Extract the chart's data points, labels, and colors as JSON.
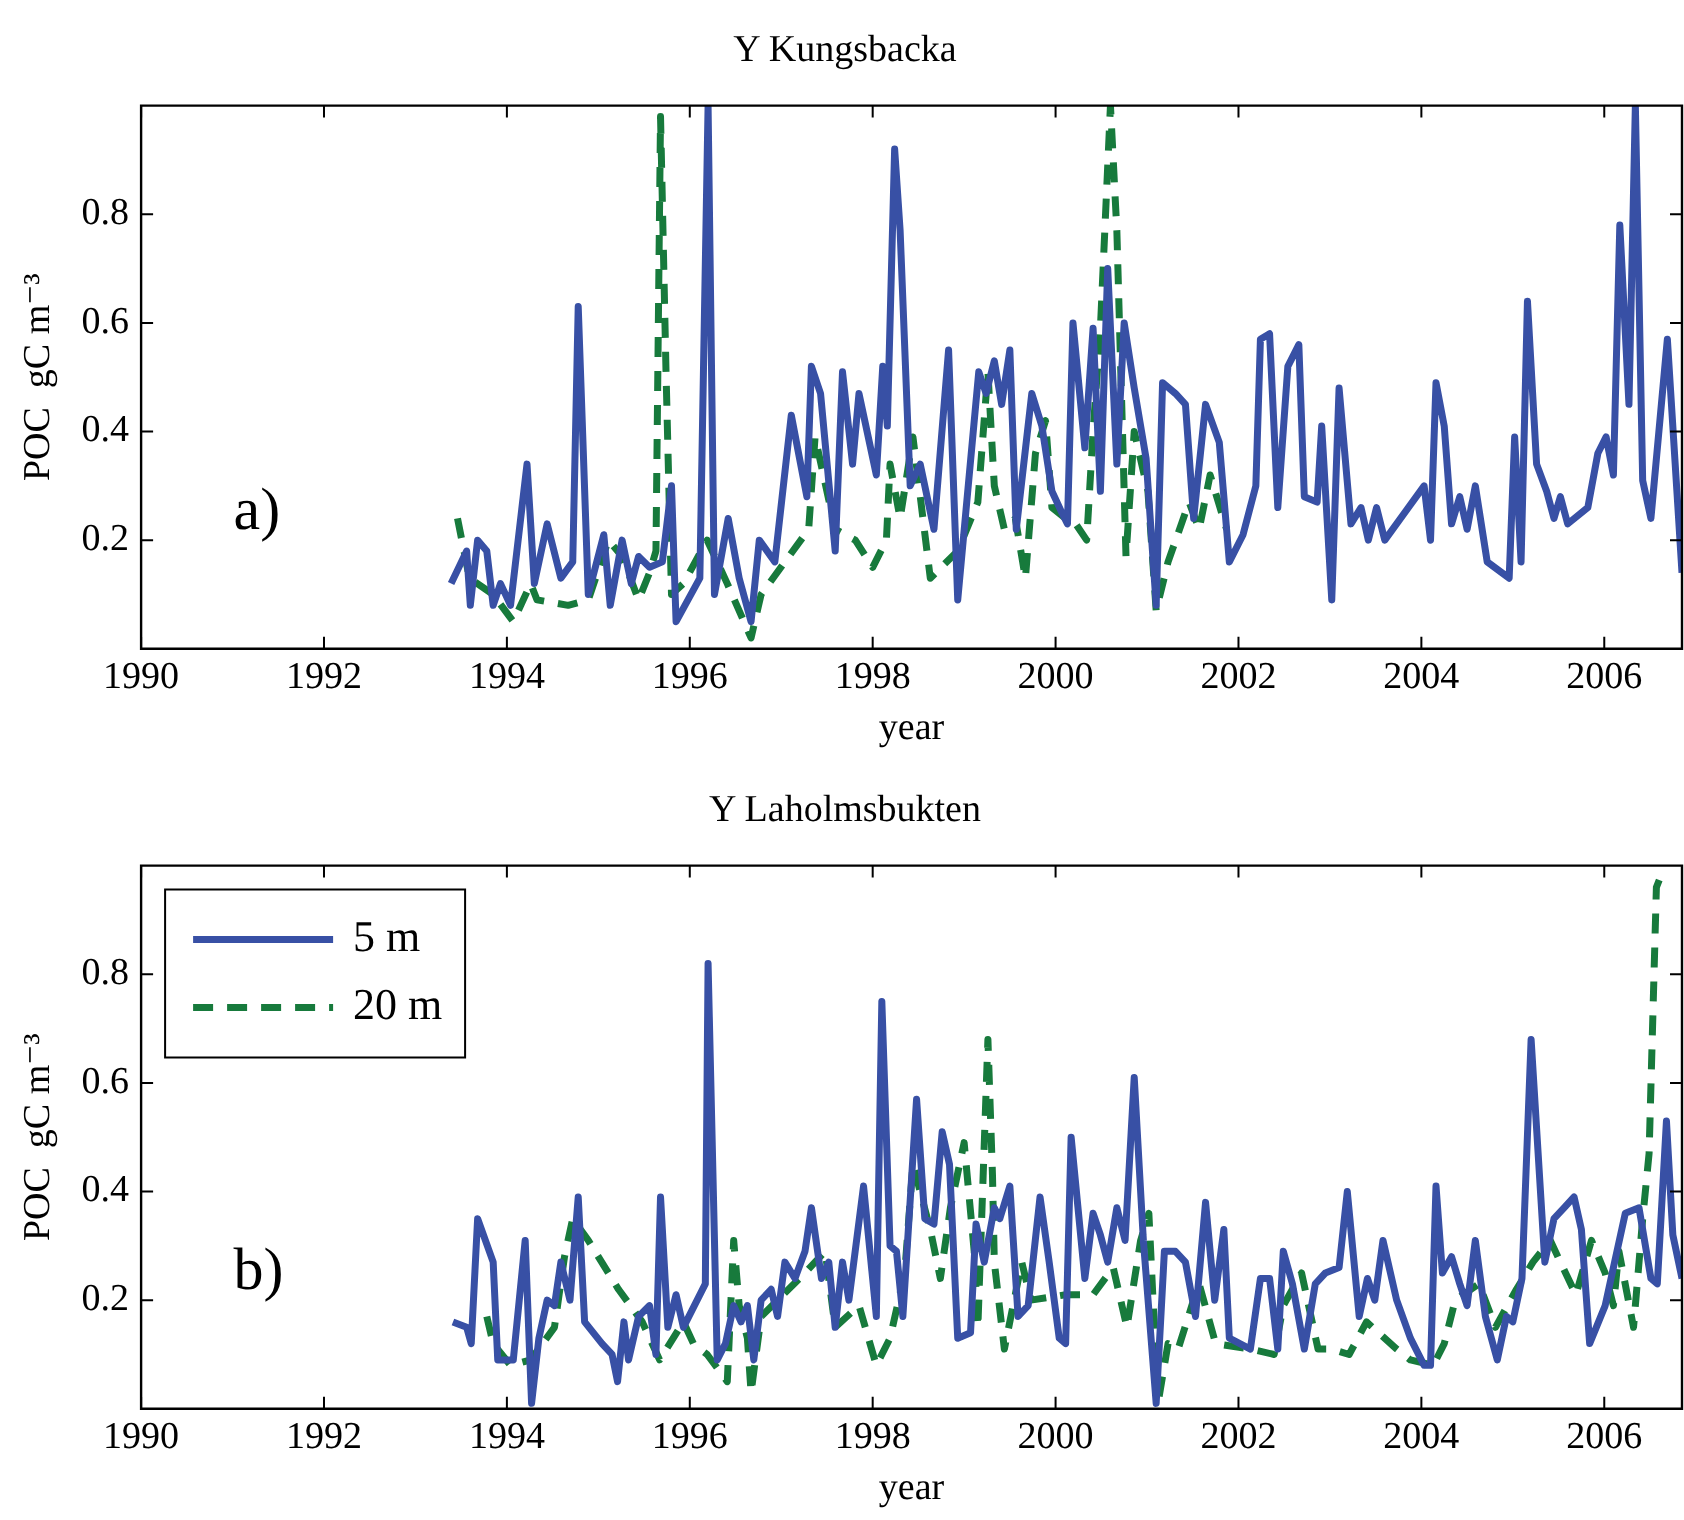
{
  "chart_data": [
    {
      "type": "line",
      "title": "Y Kungsbacka",
      "xlabel": "year",
      "ylabel": "POC  gC m⁻³",
      "annotations": [
        "a)"
      ],
      "xlim": [
        1990,
        2006.85
      ],
      "ylim": [
        0,
        1
      ],
      "xticks": [
        1990,
        1992,
        1994,
        1996,
        1998,
        2000,
        2002,
        2004,
        2006
      ],
      "yticks": [
        0.2,
        0.4,
        0.6,
        0.8
      ],
      "grid": false,
      "legend": false,
      "marker": "none",
      "series": [
        {
          "color": "#3850a5",
          "line_style": "solid",
          "x": [
            1993.39,
            1993.56,
            1993.6,
            1993.68,
            1993.78,
            1993.85,
            1993.93,
            1994.04,
            1994.22,
            1994.3,
            1994.44,
            1994.59,
            1994.72,
            1994.78,
            1994.89,
            1995.06,
            1995.13,
            1995.26,
            1995.36,
            1995.44,
            1995.56,
            1995.7,
            1995.8,
            1995.85,
            1996.11,
            1996.2,
            1996.27,
            1996.42,
            1996.54,
            1996.67,
            1996.76,
            1996.93,
            1997.11,
            1997.28,
            1997.33,
            1997.43,
            1997.59,
            1997.67,
            1997.78,
            1997.85,
            1998.04,
            1998.11,
            1998.16,
            1998.24,
            1998.3,
            1998.41,
            1998.52,
            1998.67,
            1998.83,
            1998.93,
            1999.16,
            1999.24,
            1999.33,
            1999.41,
            1999.5,
            1999.57,
            1999.74,
            1999.85,
            1999.96,
            2000.07,
            2000.13,
            2000.19,
            2000.32,
            2000.41,
            2000.49,
            2000.57,
            2000.67,
            2000.75,
            2000.86,
            2000.99,
            2001.1,
            2001.17,
            2001.31,
            2001.42,
            2001.51,
            2001.64,
            2001.79,
            2001.9,
            2002.05,
            2002.19,
            2002.24,
            2002.34,
            2002.43,
            2002.54,
            2002.66,
            2002.72,
            2002.86,
            2002.91,
            2003.02,
            2003.1,
            2003.23,
            2003.34,
            2003.42,
            2003.51,
            2003.6,
            2004.03,
            2004.1,
            2004.16,
            2004.25,
            2004.33,
            2004.42,
            2004.5,
            2004.59,
            2004.72,
            2004.96,
            2005.02,
            2005.09,
            2005.16,
            2005.26,
            2005.37,
            2005.45,
            2005.52,
            2005.6,
            2005.82,
            2005.93,
            2006.02,
            2006.1,
            2006.17,
            2006.27,
            2006.34,
            2006.42,
            2006.51,
            2006.69,
            2006.85
          ],
          "values": [
            0.12,
            0.18,
            0.08,
            0.2,
            0.18,
            0.08,
            0.12,
            0.08,
            0.34,
            0.12,
            0.23,
            0.13,
            0.16,
            0.63,
            0.1,
            0.21,
            0.08,
            0.2,
            0.12,
            0.17,
            0.15,
            0.16,
            0.3,
            0.05,
            0.13,
            1.0,
            0.1,
            0.24,
            0.13,
            0.05,
            0.2,
            0.16,
            0.43,
            0.28,
            0.52,
            0.47,
            0.18,
            0.51,
            0.34,
            0.47,
            0.32,
            0.52,
            0.41,
            0.92,
            0.77,
            0.3,
            0.34,
            0.22,
            0.55,
            0.09,
            0.51,
            0.47,
            0.53,
            0.45,
            0.55,
            0.22,
            0.47,
            0.41,
            0.29,
            0.25,
            0.23,
            0.6,
            0.37,
            0.59,
            0.29,
            0.7,
            0.34,
            0.6,
            0.48,
            0.35,
            0.08,
            0.49,
            0.47,
            0.45,
            0.24,
            0.45,
            0.38,
            0.16,
            0.21,
            0.3,
            0.57,
            0.58,
            0.26,
            0.52,
            0.56,
            0.28,
            0.27,
            0.41,
            0.09,
            0.48,
            0.23,
            0.26,
            0.2,
            0.26,
            0.2,
            0.3,
            0.2,
            0.49,
            0.41,
            0.23,
            0.28,
            0.22,
            0.3,
            0.16,
            0.13,
            0.39,
            0.16,
            0.64,
            0.34,
            0.29,
            0.24,
            0.28,
            0.23,
            0.26,
            0.36,
            0.39,
            0.32,
            0.78,
            0.45,
            1.0,
            0.31,
            0.24,
            0.57,
            0.14
          ]
        },
        {
          "color": "#177a3c",
          "line_style": "dashed",
          "x": [
            1993.46,
            1993.59,
            1993.85,
            1994.07,
            1994.26,
            1994.33,
            1994.67,
            1994.89,
            1995.11,
            1995.26,
            1995.44,
            1995.56,
            1995.63,
            1995.68,
            1995.74,
            1995.8,
            1995.93,
            1996.19,
            1996.41,
            1996.67,
            1996.78,
            1997.04,
            1997.3,
            1997.37,
            1997.59,
            1997.81,
            1998.0,
            1998.15,
            1998.19,
            1998.3,
            1998.44,
            1998.63,
            1998.93,
            1999.15,
            1999.26,
            1999.33,
            1999.44,
            1999.56,
            1999.67,
            1999.78,
            1999.89,
            1999.96,
            2000.11,
            2000.22,
            2000.34,
            2000.41,
            2000.49,
            2000.6,
            2000.67,
            2000.77,
            2000.86,
            2001.01,
            2001.1,
            2001.23,
            2001.46,
            2001.57,
            2001.69,
            2001.87
          ],
          "values": [
            0.24,
            0.13,
            0.1,
            0.05,
            0.12,
            0.09,
            0.08,
            0.09,
            0.2,
            0.17,
            0.09,
            0.14,
            0.18,
            0.98,
            0.51,
            0.1,
            0.12,
            0.2,
            0.12,
            0.02,
            0.1,
            0.16,
            0.22,
            0.39,
            0.22,
            0.2,
            0.15,
            0.2,
            0.34,
            0.24,
            0.39,
            0.13,
            0.18,
            0.27,
            0.51,
            0.3,
            0.22,
            0.24,
            0.13,
            0.36,
            0.42,
            0.26,
            0.24,
            0.23,
            0.2,
            0.4,
            0.59,
            1.0,
            0.77,
            0.17,
            0.4,
            0.29,
            0.07,
            0.16,
            0.27,
            0.22,
            0.32,
            0.22
          ]
        }
      ]
    },
    {
      "type": "line",
      "title": "Y Laholmsbukten",
      "xlabel": "year",
      "ylabel": "POC  gC m⁻³",
      "annotations": [
        "b)"
      ],
      "xlim": [
        1990,
        2006.85
      ],
      "ylim": [
        0,
        1
      ],
      "xticks": [
        1990,
        1992,
        1994,
        1996,
        1998,
        2000,
        2002,
        2004,
        2006
      ],
      "yticks": [
        0.2,
        0.4,
        0.6,
        0.8
      ],
      "grid": false,
      "legend": "top left",
      "marker": "none",
      "series": [
        {
          "name": "5 m",
          "color": "#3850a5",
          "line_style": "solid",
          "x": [
            1993.41,
            1993.56,
            1993.61,
            1993.68,
            1993.85,
            1993.9,
            1994.07,
            1994.2,
            1994.27,
            1994.35,
            1994.44,
            1994.52,
            1994.59,
            1994.69,
            1994.78,
            1994.85,
            1995.04,
            1995.15,
            1995.21,
            1995.28,
            1995.33,
            1995.44,
            1995.56,
            1995.63,
            1995.68,
            1995.76,
            1995.85,
            1995.93,
            1996.17,
            1996.2,
            1996.3,
            1996.39,
            1996.48,
            1996.56,
            1996.63,
            1996.7,
            1996.78,
            1996.89,
            1996.96,
            1997.04,
            1997.15,
            1997.26,
            1997.33,
            1997.44,
            1997.52,
            1997.59,
            1997.67,
            1997.74,
            1997.9,
            1998.04,
            1998.1,
            1998.19,
            1998.26,
            1998.33,
            1998.48,
            1998.57,
            1998.67,
            1998.76,
            1998.84,
            1998.93,
            1999.07,
            1999.13,
            1999.22,
            1999.33,
            1999.39,
            1999.5,
            1999.59,
            1999.7,
            1999.83,
            1999.93,
            2000.04,
            2000.11,
            2000.17,
            2000.32,
            2000.41,
            2000.49,
            2000.57,
            2000.67,
            2000.76,
            2000.86,
            2000.96,
            2001.1,
            2001.19,
            2001.31,
            2001.42,
            2001.53,
            2001.64,
            2001.74,
            2001.84,
            2001.9,
            2002.13,
            2002.24,
            2002.34,
            2002.43,
            2002.49,
            2002.59,
            2002.72,
            2002.84,
            2002.95,
            2003.1,
            2003.19,
            2003.32,
            2003.41,
            2003.49,
            2003.58,
            2003.73,
            2003.88,
            2004.03,
            2004.1,
            2004.16,
            2004.23,
            2004.33,
            2004.42,
            2004.5,
            2004.59,
            2004.7,
            2004.83,
            2004.93,
            2005.0,
            2005.1,
            2005.2,
            2005.35,
            2005.45,
            2005.56,
            2005.67,
            2005.75,
            2005.84,
            2006.01,
            2006.1,
            2006.23,
            2006.38,
            2006.51,
            2006.58,
            2006.68,
            2006.75,
            2006.85
          ],
          "values": [
            0.16,
            0.15,
            0.12,
            0.35,
            0.27,
            0.09,
            0.09,
            0.31,
            0.01,
            0.13,
            0.2,
            0.19,
            0.27,
            0.2,
            0.39,
            0.16,
            0.12,
            0.1,
            0.05,
            0.16,
            0.09,
            0.17,
            0.19,
            0.1,
            0.39,
            0.15,
            0.21,
            0.15,
            0.23,
            0.82,
            0.09,
            0.12,
            0.19,
            0.16,
            0.19,
            0.09,
            0.2,
            0.22,
            0.17,
            0.27,
            0.24,
            0.29,
            0.37,
            0.24,
            0.27,
            0.15,
            0.27,
            0.2,
            0.41,
            0.17,
            0.75,
            0.3,
            0.29,
            0.17,
            0.57,
            0.35,
            0.34,
            0.51,
            0.45,
            0.13,
            0.14,
            0.34,
            0.27,
            0.37,
            0.35,
            0.41,
            0.17,
            0.19,
            0.39,
            0.27,
            0.13,
            0.12,
            0.5,
            0.24,
            0.36,
            0.32,
            0.27,
            0.37,
            0.31,
            0.61,
            0.31,
            0.01,
            0.29,
            0.29,
            0.27,
            0.17,
            0.38,
            0.2,
            0.33,
            0.13,
            0.11,
            0.24,
            0.24,
            0.11,
            0.29,
            0.23,
            0.11,
            0.23,
            0.25,
            0.26,
            0.4,
            0.17,
            0.24,
            0.2,
            0.31,
            0.2,
            0.13,
            0.08,
            0.08,
            0.41,
            0.25,
            0.28,
            0.23,
            0.19,
            0.31,
            0.17,
            0.09,
            0.17,
            0.16,
            0.24,
            0.68,
            0.27,
            0.35,
            0.37,
            0.39,
            0.33,
            0.12,
            0.19,
            0.26,
            0.36,
            0.37,
            0.24,
            0.23,
            0.53,
            0.32,
            0.24
          ]
        },
        {
          "name": "20 m",
          "color": "#177a3c",
          "line_style": "dashed",
          "x": [
            1993.78,
            1993.85,
            1994.04,
            1994.26,
            1994.52,
            1994.63,
            1994.72,
            1994.89,
            1995.22,
            1995.48,
            1995.67,
            1995.93,
            1996.04,
            1996.19,
            1996.41,
            1996.48,
            1996.54,
            1996.63,
            1996.67,
            1996.78,
            1997.26,
            1997.48,
            1997.59,
            1997.85,
            1998.04,
            1998.19,
            1998.35,
            1998.44,
            1998.63,
            1998.74,
            1998.85,
            1999.0,
            1999.11,
            1999.15,
            1999.26,
            1999.31,
            1999.33,
            1999.44,
            1999.63,
            1999.73,
            2000.11,
            2000.26,
            2000.41,
            2000.63,
            2000.78,
            2000.93,
            2001.02,
            2001.12,
            2001.23,
            2001.34,
            2001.49,
            2001.57,
            2001.75,
            2002.13,
            2002.39,
            2002.49,
            2002.69,
            2002.87,
            2003.02,
            2003.21,
            2003.4,
            2003.73,
            2003.88,
            2004.13,
            2004.25,
            2004.37,
            2004.63,
            2004.81,
            2005.04,
            2005.22,
            2005.41,
            2005.52,
            2005.69,
            2005.86,
            2006.01,
            2006.1,
            2006.16,
            2006.32,
            2006.42,
            2006.49,
            2006.57,
            2006.64
          ],
          "values": [
            0.17,
            0.12,
            0.08,
            0.09,
            0.15,
            0.28,
            0.35,
            0.31,
            0.22,
            0.16,
            0.09,
            0.16,
            0.12,
            0.1,
            0.05,
            0.31,
            0.19,
            0.13,
            0.03,
            0.17,
            0.25,
            0.29,
            0.15,
            0.19,
            0.08,
            0.13,
            0.25,
            0.45,
            0.33,
            0.24,
            0.37,
            0.49,
            0.29,
            0.15,
            0.68,
            0.43,
            0.27,
            0.11,
            0.27,
            0.2,
            0.21,
            0.21,
            0.21,
            0.26,
            0.15,
            0.31,
            0.36,
            0.01,
            0.12,
            0.11,
            0.19,
            0.23,
            0.12,
            0.11,
            0.1,
            0.19,
            0.25,
            0.11,
            0.11,
            0.1,
            0.16,
            0.11,
            0.09,
            0.08,
            0.12,
            0.2,
            0.23,
            0.15,
            0.22,
            0.27,
            0.31,
            0.27,
            0.21,
            0.31,
            0.25,
            0.19,
            0.29,
            0.15,
            0.35,
            0.47,
            0.96,
            0.99
          ]
        }
      ]
    }
  ]
}
